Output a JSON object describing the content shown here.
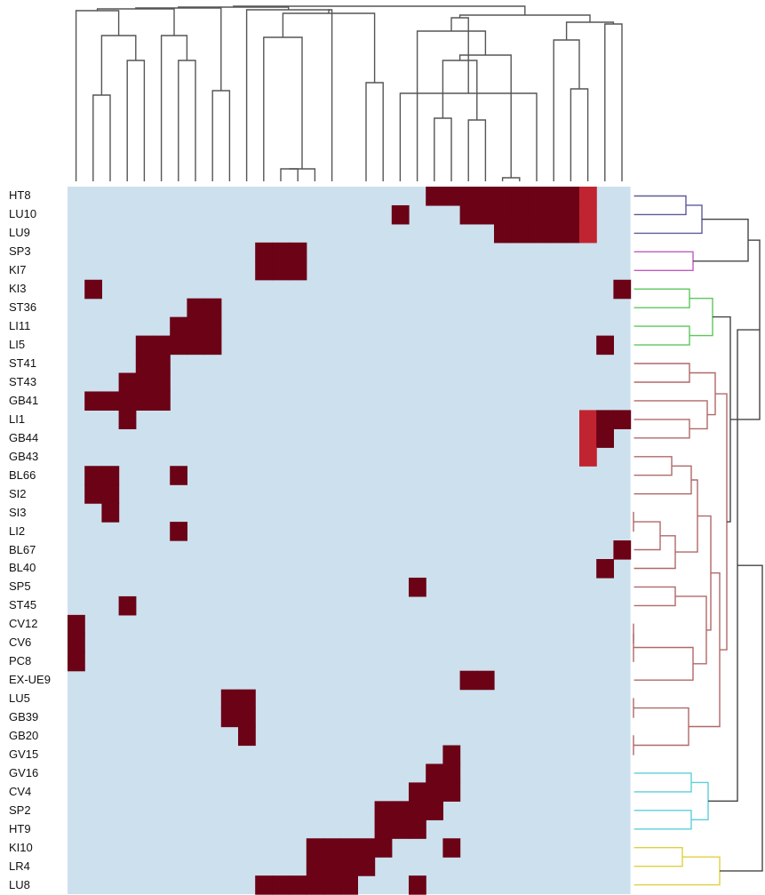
{
  "colors": {
    "background": "#ffffff",
    "cell_off": "#cde0ee",
    "cell_on": "#6b0216",
    "cell_partial": "#c02430",
    "tree_top": "#555555",
    "tree_root_right": "#444444",
    "cluster_colors": [
      "#5b5a9b",
      "#c05cc0",
      "#5cc85c",
      "#b06868",
      "#5ecfd8",
      "#e0d040"
    ]
  },
  "chart_data": {
    "type": "heatmap",
    "title": "",
    "xlabel": "",
    "ylabel": "",
    "grid": false,
    "legend": "none",
    "rows": [
      "HT8",
      "LU10",
      "LU9",
      "SP3",
      "KI7",
      "KI3",
      "ST36",
      "LI11",
      "LI5",
      "ST41",
      "ST43",
      "GB41",
      "LI1",
      "GB44",
      "GB43",
      "BL66",
      "SI2",
      "SI3",
      "LI2",
      "BL67",
      "BL40",
      "SP5",
      "ST45",
      "CV12",
      "CV6",
      "PC8",
      "EX-UE9",
      "LU5",
      "GB39",
      "GB20",
      "GV15",
      "GV16",
      "CV4",
      "SP2",
      "HT9",
      "KI10",
      "LR4",
      "LU8"
    ],
    "n_cols": 33,
    "cells": [
      [
        0,
        0,
        0,
        0,
        0,
        0,
        0,
        0,
        0,
        0,
        0,
        0,
        0,
        0,
        0,
        0,
        0,
        0,
        0,
        0,
        0,
        1,
        1,
        1,
        1,
        1,
        1,
        1,
        1,
        1,
        2,
        0,
        0
      ],
      [
        0,
        0,
        0,
        0,
        0,
        0,
        0,
        0,
        0,
        0,
        0,
        0,
        0,
        0,
        0,
        0,
        0,
        0,
        0,
        1,
        0,
        0,
        0,
        1,
        1,
        1,
        1,
        1,
        1,
        1,
        2,
        0,
        0
      ],
      [
        0,
        0,
        0,
        0,
        0,
        0,
        0,
        0,
        0,
        0,
        0,
        0,
        0,
        0,
        0,
        0,
        0,
        0,
        0,
        0,
        0,
        0,
        0,
        0,
        0,
        1,
        1,
        1,
        1,
        1,
        2,
        0,
        0
      ],
      [
        0,
        0,
        0,
        0,
        0,
        0,
        0,
        0,
        0,
        0,
        0,
        1,
        1,
        1,
        0,
        0,
        0,
        0,
        0,
        0,
        0,
        0,
        0,
        0,
        0,
        0,
        0,
        0,
        0,
        0,
        0,
        0,
        0
      ],
      [
        0,
        0,
        0,
        0,
        0,
        0,
        0,
        0,
        0,
        0,
        0,
        1,
        1,
        1,
        0,
        0,
        0,
        0,
        0,
        0,
        0,
        0,
        0,
        0,
        0,
        0,
        0,
        0,
        0,
        0,
        0,
        0,
        0
      ],
      [
        0,
        1,
        0,
        0,
        0,
        0,
        0,
        0,
        0,
        0,
        0,
        0,
        0,
        0,
        0,
        0,
        0,
        0,
        0,
        0,
        0,
        0,
        0,
        0,
        0,
        0,
        0,
        0,
        0,
        0,
        0,
        0,
        1
      ],
      [
        0,
        0,
        0,
        0,
        0,
        0,
        0,
        1,
        1,
        0,
        0,
        0,
        0,
        0,
        0,
        0,
        0,
        0,
        0,
        0,
        0,
        0,
        0,
        0,
        0,
        0,
        0,
        0,
        0,
        0,
        0,
        0,
        0
      ],
      [
        0,
        0,
        0,
        0,
        0,
        0,
        1,
        1,
        1,
        0,
        0,
        0,
        0,
        0,
        0,
        0,
        0,
        0,
        0,
        0,
        0,
        0,
        0,
        0,
        0,
        0,
        0,
        0,
        0,
        0,
        0,
        0,
        0
      ],
      [
        0,
        0,
        0,
        0,
        1,
        1,
        1,
        1,
        1,
        0,
        0,
        0,
        0,
        0,
        0,
        0,
        0,
        0,
        0,
        0,
        0,
        0,
        0,
        0,
        0,
        0,
        0,
        0,
        0,
        0,
        0,
        1,
        0
      ],
      [
        0,
        0,
        0,
        0,
        1,
        1,
        0,
        0,
        0,
        0,
        0,
        0,
        0,
        0,
        0,
        0,
        0,
        0,
        0,
        0,
        0,
        0,
        0,
        0,
        0,
        0,
        0,
        0,
        0,
        0,
        0,
        0,
        0
      ],
      [
        0,
        0,
        0,
        1,
        1,
        1,
        0,
        0,
        0,
        0,
        0,
        0,
        0,
        0,
        0,
        0,
        0,
        0,
        0,
        0,
        0,
        0,
        0,
        0,
        0,
        0,
        0,
        0,
        0,
        0,
        0,
        0,
        0
      ],
      [
        0,
        1,
        1,
        1,
        1,
        1,
        0,
        0,
        0,
        0,
        0,
        0,
        0,
        0,
        0,
        0,
        0,
        0,
        0,
        0,
        0,
        0,
        0,
        0,
        0,
        0,
        0,
        0,
        0,
        0,
        0,
        0,
        0
      ],
      [
        0,
        0,
        0,
        1,
        0,
        0,
        0,
        0,
        0,
        0,
        0,
        0,
        0,
        0,
        0,
        0,
        0,
        0,
        0,
        0,
        0,
        0,
        0,
        0,
        0,
        0,
        0,
        0,
        0,
        0,
        2,
        1,
        1
      ],
      [
        0,
        0,
        0,
        0,
        0,
        0,
        0,
        0,
        0,
        0,
        0,
        0,
        0,
        0,
        0,
        0,
        0,
        0,
        0,
        0,
        0,
        0,
        0,
        0,
        0,
        0,
        0,
        0,
        0,
        0,
        2,
        1,
        0
      ],
      [
        0,
        0,
        0,
        0,
        0,
        0,
        0,
        0,
        0,
        0,
        0,
        0,
        0,
        0,
        0,
        0,
        0,
        0,
        0,
        0,
        0,
        0,
        0,
        0,
        0,
        0,
        0,
        0,
        0,
        0,
        2,
        0,
        0
      ],
      [
        0,
        1,
        1,
        0,
        0,
        0,
        1,
        0,
        0,
        0,
        0,
        0,
        0,
        0,
        0,
        0,
        0,
        0,
        0,
        0,
        0,
        0,
        0,
        0,
        0,
        0,
        0,
        0,
        0,
        0,
        0,
        0,
        0
      ],
      [
        0,
        1,
        1,
        0,
        0,
        0,
        0,
        0,
        0,
        0,
        0,
        0,
        0,
        0,
        0,
        0,
        0,
        0,
        0,
        0,
        0,
        0,
        0,
        0,
        0,
        0,
        0,
        0,
        0,
        0,
        0,
        0,
        0
      ],
      [
        0,
        0,
        1,
        0,
        0,
        0,
        0,
        0,
        0,
        0,
        0,
        0,
        0,
        0,
        0,
        0,
        0,
        0,
        0,
        0,
        0,
        0,
        0,
        0,
        0,
        0,
        0,
        0,
        0,
        0,
        0,
        0,
        0
      ],
      [
        0,
        0,
        0,
        0,
        0,
        0,
        1,
        0,
        0,
        0,
        0,
        0,
        0,
        0,
        0,
        0,
        0,
        0,
        0,
        0,
        0,
        0,
        0,
        0,
        0,
        0,
        0,
        0,
        0,
        0,
        0,
        0,
        0
      ],
      [
        0,
        0,
        0,
        0,
        0,
        0,
        0,
        0,
        0,
        0,
        0,
        0,
        0,
        0,
        0,
        0,
        0,
        0,
        0,
        0,
        0,
        0,
        0,
        0,
        0,
        0,
        0,
        0,
        0,
        0,
        0,
        0,
        1
      ],
      [
        0,
        0,
        0,
        0,
        0,
        0,
        0,
        0,
        0,
        0,
        0,
        0,
        0,
        0,
        0,
        0,
        0,
        0,
        0,
        0,
        0,
        0,
        0,
        0,
        0,
        0,
        0,
        0,
        0,
        0,
        0,
        1,
        0
      ],
      [
        0,
        0,
        0,
        0,
        0,
        0,
        0,
        0,
        0,
        0,
        0,
        0,
        0,
        0,
        0,
        0,
        0,
        0,
        0,
        0,
        1,
        0,
        0,
        0,
        0,
        0,
        0,
        0,
        0,
        0,
        0,
        0,
        0
      ],
      [
        0,
        0,
        0,
        1,
        0,
        0,
        0,
        0,
        0,
        0,
        0,
        0,
        0,
        0,
        0,
        0,
        0,
        0,
        0,
        0,
        0,
        0,
        0,
        0,
        0,
        0,
        0,
        0,
        0,
        0,
        0,
        0,
        0
      ],
      [
        1,
        0,
        0,
        0,
        0,
        0,
        0,
        0,
        0,
        0,
        0,
        0,
        0,
        0,
        0,
        0,
        0,
        0,
        0,
        0,
        0,
        0,
        0,
        0,
        0,
        0,
        0,
        0,
        0,
        0,
        0,
        0,
        0
      ],
      [
        1,
        0,
        0,
        0,
        0,
        0,
        0,
        0,
        0,
        0,
        0,
        0,
        0,
        0,
        0,
        0,
        0,
        0,
        0,
        0,
        0,
        0,
        0,
        0,
        0,
        0,
        0,
        0,
        0,
        0,
        0,
        0,
        0
      ],
      [
        1,
        0,
        0,
        0,
        0,
        0,
        0,
        0,
        0,
        0,
        0,
        0,
        0,
        0,
        0,
        0,
        0,
        0,
        0,
        0,
        0,
        0,
        0,
        0,
        0,
        0,
        0,
        0,
        0,
        0,
        0,
        0,
        0
      ],
      [
        0,
        0,
        0,
        0,
        0,
        0,
        0,
        0,
        0,
        0,
        0,
        0,
        0,
        0,
        0,
        0,
        0,
        0,
        0,
        0,
        0,
        0,
        0,
        1,
        1,
        0,
        0,
        0,
        0,
        0,
        0,
        0,
        0
      ],
      [
        0,
        0,
        0,
        0,
        0,
        0,
        0,
        0,
        0,
        1,
        1,
        0,
        0,
        0,
        0,
        0,
        0,
        0,
        0,
        0,
        0,
        0,
        0,
        0,
        0,
        0,
        0,
        0,
        0,
        0,
        0,
        0,
        0
      ],
      [
        0,
        0,
        0,
        0,
        0,
        0,
        0,
        0,
        0,
        1,
        1,
        0,
        0,
        0,
        0,
        0,
        0,
        0,
        0,
        0,
        0,
        0,
        0,
        0,
        0,
        0,
        0,
        0,
        0,
        0,
        0,
        0,
        0
      ],
      [
        0,
        0,
        0,
        0,
        0,
        0,
        0,
        0,
        0,
        0,
        1,
        0,
        0,
        0,
        0,
        0,
        0,
        0,
        0,
        0,
        0,
        0,
        0,
        0,
        0,
        0,
        0,
        0,
        0,
        0,
        0,
        0,
        0
      ],
      [
        0,
        0,
        0,
        0,
        0,
        0,
        0,
        0,
        0,
        0,
        0,
        0,
        0,
        0,
        0,
        0,
        0,
        0,
        0,
        0,
        0,
        0,
        1,
        0,
        0,
        0,
        0,
        0,
        0,
        0,
        0,
        0,
        0
      ],
      [
        0,
        0,
        0,
        0,
        0,
        0,
        0,
        0,
        0,
        0,
        0,
        0,
        0,
        0,
        0,
        0,
        0,
        0,
        0,
        0,
        0,
        1,
        1,
        0,
        0,
        0,
        0,
        0,
        0,
        0,
        0,
        0,
        0
      ],
      [
        0,
        0,
        0,
        0,
        0,
        0,
        0,
        0,
        0,
        0,
        0,
        0,
        0,
        0,
        0,
        0,
        0,
        0,
        0,
        0,
        1,
        1,
        1,
        0,
        0,
        0,
        0,
        0,
        0,
        0,
        0,
        0,
        0
      ],
      [
        0,
        0,
        0,
        0,
        0,
        0,
        0,
        0,
        0,
        0,
        0,
        0,
        0,
        0,
        0,
        0,
        0,
        0,
        1,
        1,
        1,
        1,
        0,
        0,
        0,
        0,
        0,
        0,
        0,
        0,
        0,
        0,
        0
      ],
      [
        0,
        0,
        0,
        0,
        0,
        0,
        0,
        0,
        0,
        0,
        0,
        0,
        0,
        0,
        0,
        0,
        0,
        0,
        1,
        1,
        1,
        0,
        0,
        0,
        0,
        0,
        0,
        0,
        0,
        0,
        0,
        0,
        0
      ],
      [
        0,
        0,
        0,
        0,
        0,
        0,
        0,
        0,
        0,
        0,
        0,
        0,
        0,
        0,
        1,
        1,
        1,
        1,
        1,
        0,
        0,
        0,
        1,
        0,
        0,
        0,
        0,
        0,
        0,
        0,
        0,
        0,
        0
      ],
      [
        0,
        0,
        0,
        0,
        0,
        0,
        0,
        0,
        0,
        0,
        0,
        0,
        0,
        0,
        1,
        1,
        1,
        1,
        0,
        0,
        0,
        0,
        0,
        0,
        0,
        0,
        0,
        0,
        0,
        0,
        0,
        0,
        0
      ],
      [
        0,
        0,
        0,
        0,
        0,
        0,
        0,
        0,
        0,
        0,
        0,
        1,
        1,
        1,
        1,
        1,
        1,
        0,
        0,
        0,
        1,
        0,
        0,
        0,
        0,
        0,
        0,
        0,
        0,
        0,
        0,
        0,
        0
      ]
    ]
  }
}
